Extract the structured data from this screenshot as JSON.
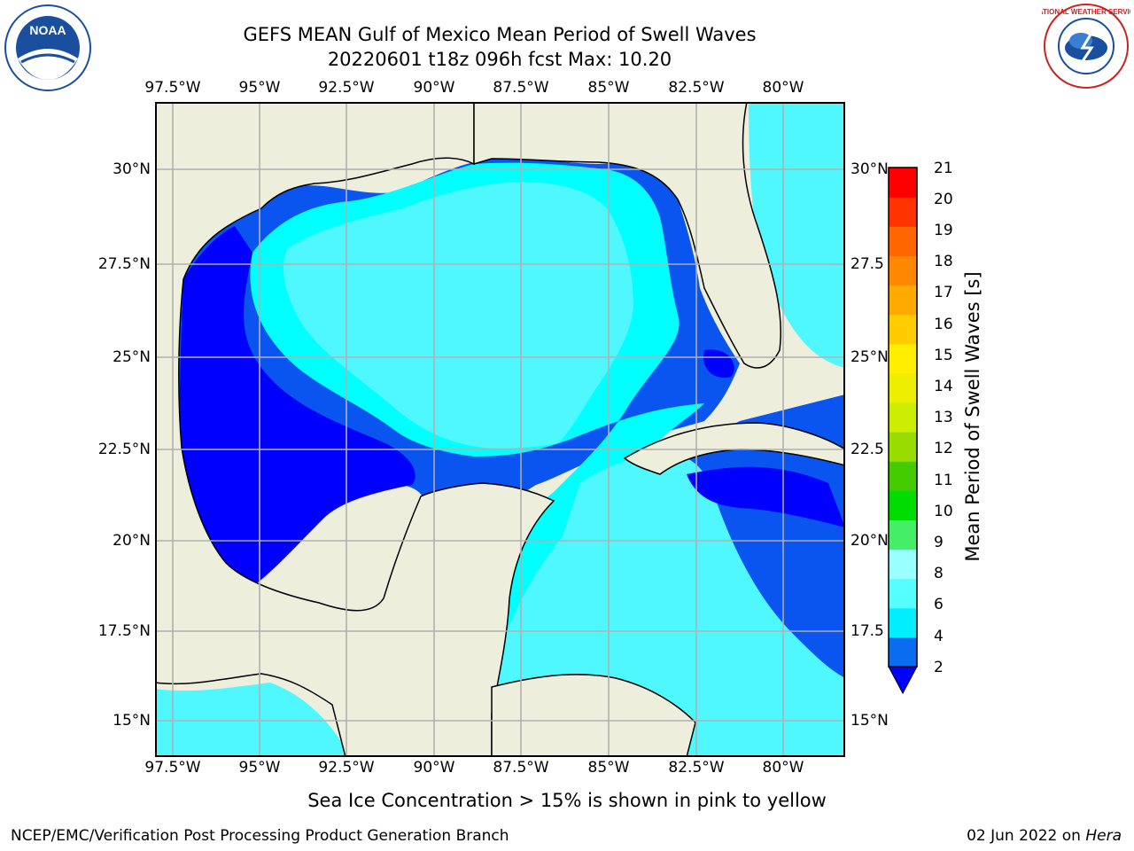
{
  "header": {
    "title_line1": "GEFS MEAN Gulf of Mexico Mean Period of Swell Waves",
    "title_line2": "20220601 t18z 096h fcst   Max: 10.20"
  },
  "map": {
    "lon_labels": [
      "97.5°W",
      "95°W",
      "92.5°W",
      "90°W",
      "87.5°W",
      "85°W",
      "82.5°W",
      "80°W"
    ],
    "lat_labels_left": [
      "30°N",
      "27.5°N",
      "25°N",
      "22.5°N",
      "20°N",
      "17.5°N",
      "15°N"
    ],
    "lat_labels_right": [
      "30°N",
      "27.5",
      "25°N",
      "22.5",
      "20°N",
      "17.5",
      "15°N"
    ],
    "colors": {
      "land": "#eeeedd",
      "band_2_4": "#0a55f0",
      "band_4_6": "#00ffff",
      "band_6_8": "#4ff7ff",
      "band_lt2": "#0000ff",
      "grid": "#b0b0b0"
    }
  },
  "colorbar": {
    "title": "Mean Period of Swell Waves [s]",
    "ticks": [
      "21",
      "20",
      "19",
      "18",
      "17",
      "16",
      "15",
      "14",
      "13",
      "12",
      "11",
      "10",
      "9",
      "8",
      "6",
      "4",
      "2"
    ],
    "colors": [
      "#0a6cf0",
      "#00eeff",
      "#55ffff",
      "#99ffff",
      "#44ee66",
      "#00dd00",
      "#44cc00",
      "#99dd00",
      "#ccee00",
      "#eeee00",
      "#ffee00",
      "#ffcc00",
      "#ffaa00",
      "#ff8800",
      "#ff6600",
      "#ff3300",
      "#ff0000"
    ]
  },
  "logos": {
    "noaa_text": "NOAA",
    "nws_text": "NATIONAL WEATHER SERVICE"
  },
  "footer": {
    "note": "Sea Ice Concentration > 15% is shown in pink to yellow",
    "left": "NCEP/EMC/Verification Post Processing Product Generation Branch",
    "right_date": "02 Jun 2022 on ",
    "right_host": "Hera"
  }
}
